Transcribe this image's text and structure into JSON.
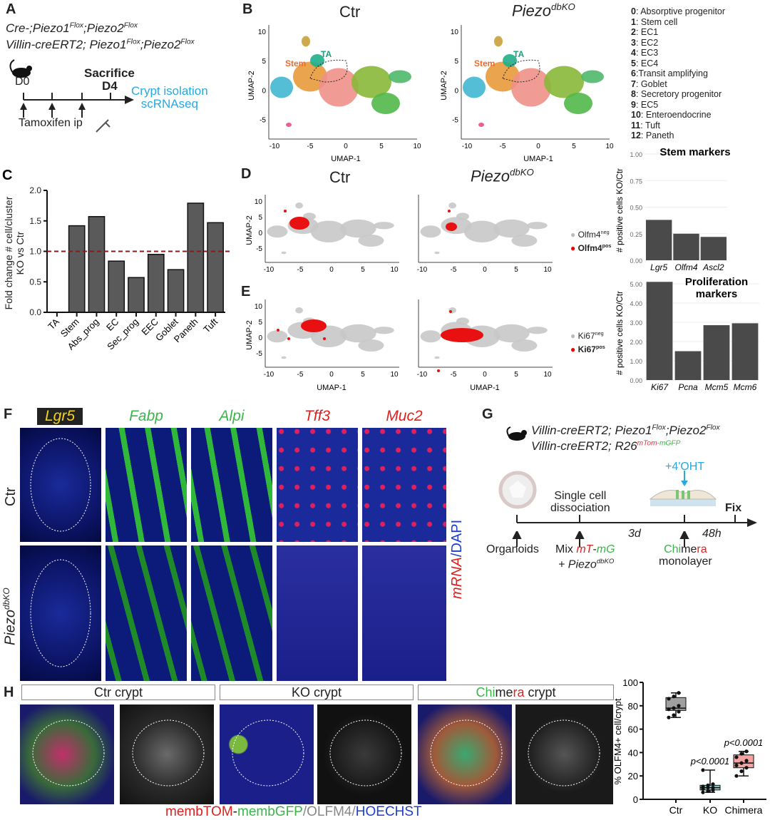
{
  "panelA": {
    "label": "A",
    "line1": [
      "Cre-;Piezo1",
      "Flox",
      ";Piezo2",
      "Flox"
    ],
    "line2": [
      "Villin-creERT2; Piezo1",
      "Flox",
      ";Piezo2",
      "Flox"
    ],
    "d0": "D0",
    "sacrifice": "Sacrifice",
    "d4": "D4",
    "crypt1": "Crypt isolation",
    "crypt2": "scRNAseq",
    "tamoxifen": "Tamoxifen ip",
    "icons": [
      "mouse-icon",
      "syringe-icon"
    ],
    "accent": "#29a9e0"
  },
  "panelB": {
    "label": "B",
    "title_ctr": "Ctr",
    "title_ko": [
      "Piezo",
      "dbKO"
    ],
    "xlabel": "UMAP-1",
    "ylabel": "UMAP-2",
    "xticks": [
      "-10",
      "-5",
      "0",
      "5",
      "10"
    ],
    "yticks": [
      "10",
      "5",
      "0",
      "-5"
    ],
    "stem": "Stem",
    "ta": "TA",
    "legend": [
      [
        "0",
        ": Absorptive progenitor"
      ],
      [
        "1",
        ": Stem cell"
      ],
      [
        "2",
        ": EC1"
      ],
      [
        "3",
        ": EC2"
      ],
      [
        "4",
        ": EC3"
      ],
      [
        "5",
        ": EC4"
      ],
      [
        "6",
        ":Transit amplifying"
      ],
      [
        "7",
        ": Goblet"
      ],
      [
        "8",
        ": Secretory progenitor"
      ],
      [
        "9",
        ": EC5"
      ],
      [
        "10",
        ": Enteroendocrine"
      ],
      [
        "11",
        ": Tuft"
      ],
      [
        "12",
        ": Paneth"
      ]
    ]
  },
  "panelD": {
    "label": "D",
    "title_ctr": "Ctr",
    "title_ko": [
      "Piezo",
      "dbKO"
    ],
    "legend_neg": [
      "Olfm4",
      "neg"
    ],
    "legend_pos": [
      "Olfm4",
      "pos"
    ]
  },
  "panelE": {
    "label": "E",
    "legend_neg": [
      "Ki67",
      "neg"
    ],
    "legend_pos": [
      "Ki67",
      "pos"
    ]
  },
  "panelF": {
    "label": "F",
    "columns": [
      "Lgr5",
      "Fabp",
      "Alpi",
      "Tff3",
      "Muc2"
    ],
    "rows": [
      "Ctr",
      [
        "Piezo",
        "dbKO"
      ]
    ],
    "side": [
      "mRNA",
      "/DAPI"
    ]
  },
  "panelG": {
    "label": "G",
    "line1": [
      "Villin-creERT2; Piezo1",
      "Flox",
      ";Piezo2",
      "Flox"
    ],
    "line2": [
      "Villin-creERT2; R26",
      "mTom",
      "-mGFP"
    ],
    "oht": "+4'OHT",
    "dissoc1": "Single cell",
    "dissoc2": "dissociation",
    "fix": "Fix",
    "d3": "3d",
    "h48": "48h",
    "organoids": "Organoids",
    "mix": [
      "Mix ",
      "mT",
      "-",
      "mG"
    ],
    "mix2": [
      "+ Piezo",
      "dbKO"
    ],
    "chimera": [
      "Chi",
      "me",
      "ra"
    ],
    "monolayer": "monolayer"
  },
  "panelH": {
    "label": "H",
    "headers": [
      "Ctr crypt",
      "KO crypt",
      [
        "Chi",
        "me",
        "ra",
        " crypt"
      ]
    ],
    "caption": [
      "membTOM",
      "-",
      "membGFP",
      "/OLFM4/",
      "HOECHST"
    ]
  },
  "chart_data": [
    {
      "id": "C",
      "type": "bar",
      "ylabel": "Fold change # cell/cluster KO vs Ctr",
      "categories": [
        "TA",
        "Stem",
        "Abs_prog",
        "EC",
        "Sec_prog",
        "EEC",
        "Goblet",
        "Paneth",
        "Tuft"
      ],
      "values": [
        0,
        1.42,
        1.57,
        0.84,
        0.57,
        0.95,
        0.7,
        1.79,
        1.47
      ],
      "ylim": [
        0,
        2
      ],
      "yticks": [
        "0.0",
        "0.5",
        "1.0",
        "1.5",
        "2.0"
      ],
      "reference_line": 1.0,
      "reference_color": "#8b1a1a",
      "bar_color": "#5a5a5a"
    },
    {
      "id": "stem",
      "type": "bar",
      "title": "Stem markers",
      "ylabel": "# positive cells  KO/Ctr",
      "categories": [
        "Lgr5",
        "Olfm4",
        "Ascl2"
      ],
      "values": [
        0.38,
        0.25,
        0.22
      ],
      "ylim": [
        0,
        1
      ],
      "yticks": [
        "0.00",
        "0.25",
        "0.50",
        "0.75",
        "1.00"
      ],
      "grid": true
    },
    {
      "id": "prolif",
      "type": "bar",
      "title": [
        "Proliferation",
        "markers"
      ],
      "ylabel": "# positive cells  KO/Ctr",
      "categories": [
        "Ki67",
        "Pcna",
        "Mcm5",
        "Mcm6"
      ],
      "values": [
        5.1,
        1.5,
        2.85,
        2.95
      ],
      "ylim": [
        0,
        5
      ],
      "yticks": [
        "0.00",
        "1.00",
        "2.00",
        "3.00",
        "4.00",
        "5.00"
      ],
      "grid": true
    },
    {
      "id": "H",
      "type": "box",
      "ylabel": "% OLFM4+ cell/crypt",
      "categories": [
        "Ctr",
        "KO",
        "Chimera"
      ],
      "ylim": [
        0,
        100
      ],
      "yticks": [
        "0",
        "20",
        "40",
        "60",
        "80",
        "100"
      ],
      "boxes": [
        {
          "min": 70,
          "q1": 76,
          "median": 78,
          "q3": 87,
          "max": 91,
          "points": [
            70,
            72,
            75,
            77,
            78,
            80,
            86,
            88,
            91
          ],
          "color": "#a0a0a0"
        },
        {
          "min": 6,
          "q1": 8,
          "median": 10,
          "q3": 12,
          "max": 25,
          "points": [
            6,
            7,
            8,
            9,
            10,
            10,
            11,
            12,
            13,
            25
          ],
          "color": "#8fc6c8"
        },
        {
          "min": 20,
          "q1": 27,
          "median": 31,
          "q3": 38,
          "max": 41,
          "points": [
            20,
            24,
            27,
            29,
            31,
            33,
            36,
            39,
            41
          ],
          "color": "#f4a3a3"
        }
      ],
      "annotations": [
        "",
        "p<0.0001",
        "p<0.0001"
      ]
    }
  ]
}
